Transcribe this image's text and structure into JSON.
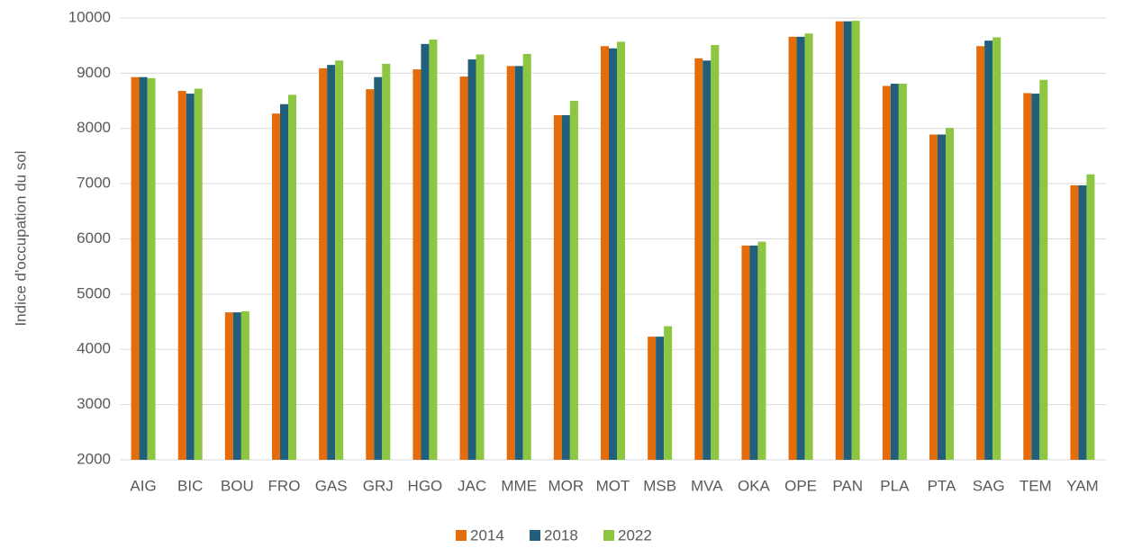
{
  "chart_data": {
    "type": "bar",
    "y_label": "Indice d'occupation du sol",
    "categories": [
      "AIG",
      "BIC",
      "BOU",
      "FRO",
      "GAS",
      "GRJ",
      "HGO",
      "JAC",
      "MME",
      "MOR",
      "MOT",
      "MSB",
      "MVA",
      "OKA",
      "OPE",
      "PAN",
      "PLA",
      "PTA",
      "SAG",
      "TEM",
      "YAM"
    ],
    "series": [
      {
        "name": "2014",
        "color": "#e46c0a",
        "values": [
          8930,
          8680,
          4670,
          8270,
          9090,
          8710,
          9070,
          8940,
          9130,
          8240,
          9490,
          4230,
          9270,
          5880,
          9660,
          9940,
          8770,
          7890,
          9490,
          8640,
          6970
        ]
      },
      {
        "name": "2018",
        "color": "#215f7a",
        "values": [
          8930,
          8630,
          4670,
          8440,
          9150,
          8930,
          9530,
          9250,
          9130,
          8240,
          9450,
          4230,
          9230,
          5880,
          9660,
          9940,
          8810,
          7890,
          9590,
          8630,
          6970
        ]
      },
      {
        "name": "2022",
        "color": "#8dc641",
        "values": [
          8910,
          8720,
          4690,
          8610,
          9230,
          9170,
          9610,
          9340,
          9350,
          8500,
          9570,
          4420,
          9510,
          5950,
          9720,
          9950,
          8810,
          8010,
          9650,
          8880,
          7170
        ]
      }
    ],
    "ylim": [
      2000,
      10000
    ],
    "yticks": [
      2000,
      3000,
      4000,
      5000,
      6000,
      7000,
      8000,
      9000,
      10000
    ],
    "grid": true,
    "legend": "bottom"
  }
}
